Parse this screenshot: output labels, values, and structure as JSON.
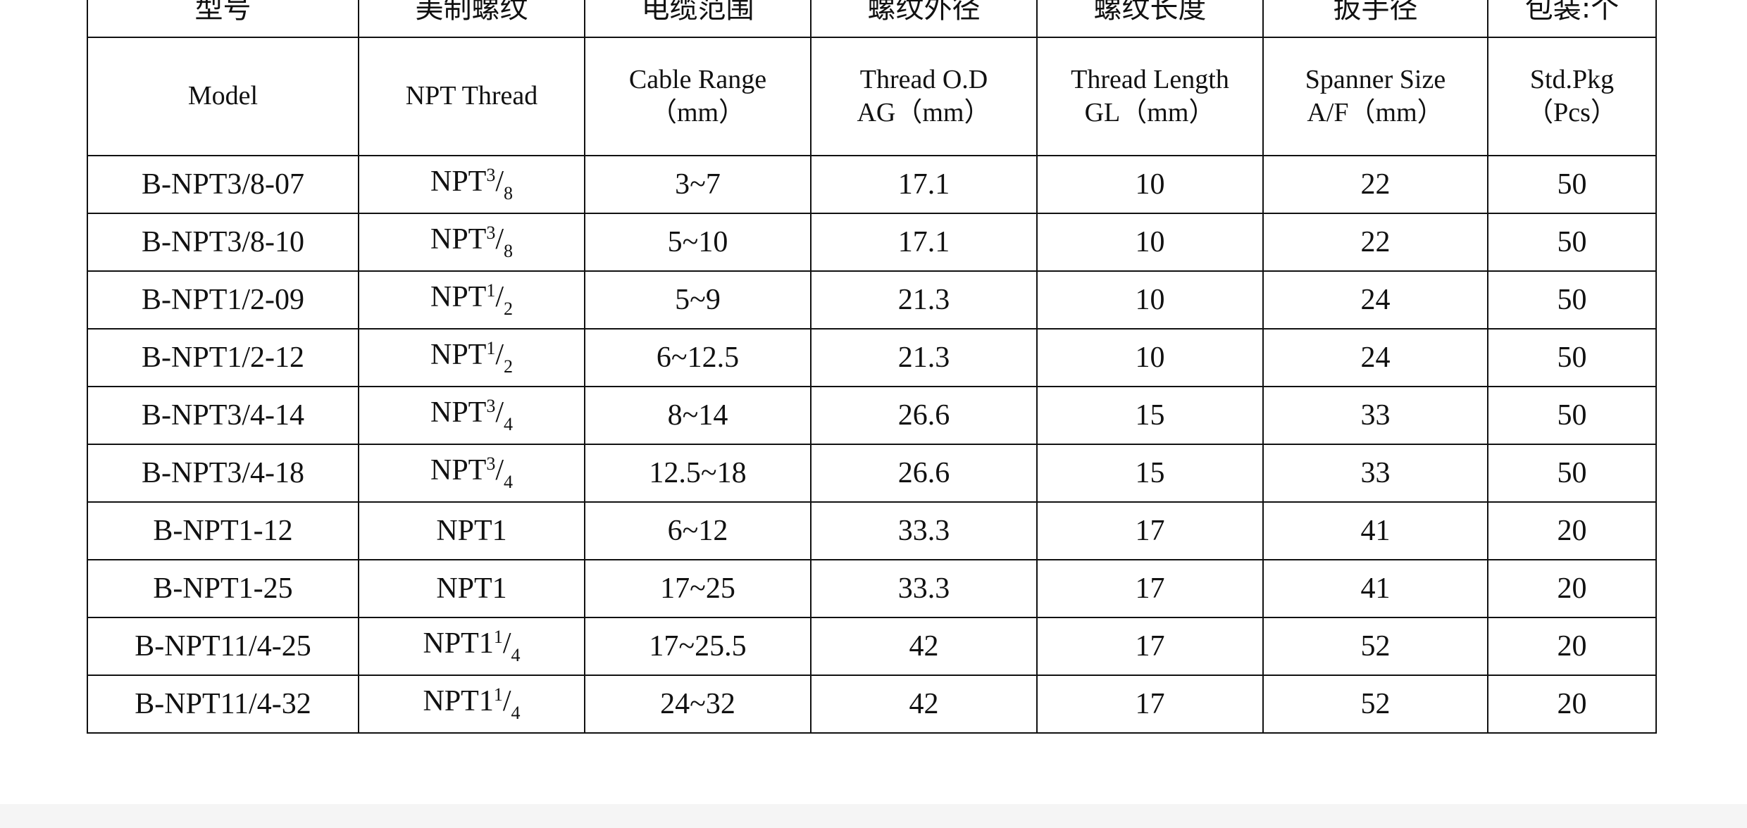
{
  "table": {
    "header_cn": [
      "型号",
      "美制螺纹",
      "电缆范围",
      "螺纹外径",
      "螺纹长度",
      "扳手径",
      "包装:个"
    ],
    "header_en": [
      [
        "Model"
      ],
      [
        "NPT Thread"
      ],
      [
        "Cable Range",
        "（mm）"
      ],
      [
        "Thread O.D",
        "AG（mm）"
      ],
      [
        "Thread Length",
        "GL（mm）"
      ],
      [
        "Spanner Size",
        "A/F（mm）"
      ],
      [
        "Std.Pkg",
        "（Pcs）"
      ]
    ],
    "rows": [
      [
        "B-NPT3/8-07",
        {
          "base": "NPT",
          "num": "3",
          "den": "8"
        },
        "3~7",
        "17.1",
        "10",
        "22",
        "50"
      ],
      [
        "B-NPT3/8-10",
        {
          "base": "NPT",
          "num": "3",
          "den": "8"
        },
        "5~10",
        "17.1",
        "10",
        "22",
        "50"
      ],
      [
        "B-NPT1/2-09",
        {
          "base": "NPT",
          "num": "1",
          "den": "2"
        },
        "5~9",
        "21.3",
        "10",
        "24",
        "50"
      ],
      [
        "B-NPT1/2-12",
        {
          "base": "NPT",
          "num": "1",
          "den": "2"
        },
        "6~12.5",
        "21.3",
        "10",
        "24",
        "50"
      ],
      [
        "B-NPT3/4-14",
        {
          "base": "NPT",
          "num": "3",
          "den": "4"
        },
        "8~14",
        "26.6",
        "15",
        "33",
        "50"
      ],
      [
        "B-NPT3/4-18",
        {
          "base": "NPT",
          "num": "3",
          "den": "4"
        },
        "12.5~18",
        "26.6",
        "15",
        "33",
        "50"
      ],
      [
        "B-NPT1-12",
        {
          "base": "NPT1"
        },
        "6~12",
        "33.3",
        "17",
        "41",
        "20"
      ],
      [
        "B-NPT1-25",
        {
          "base": "NPT1"
        },
        "17~25",
        "33.3",
        "17",
        "41",
        "20"
      ],
      [
        "B-NPT11/4-25",
        {
          "base": "NPT1",
          "num": "1",
          "den": "4"
        },
        "17~25.5",
        "42",
        "17",
        "52",
        "20"
      ],
      [
        "B-NPT11/4-32",
        {
          "base": "NPT1",
          "num": "1",
          "den": "4"
        },
        "24~32",
        "42",
        "17",
        "52",
        "20"
      ]
    ]
  }
}
